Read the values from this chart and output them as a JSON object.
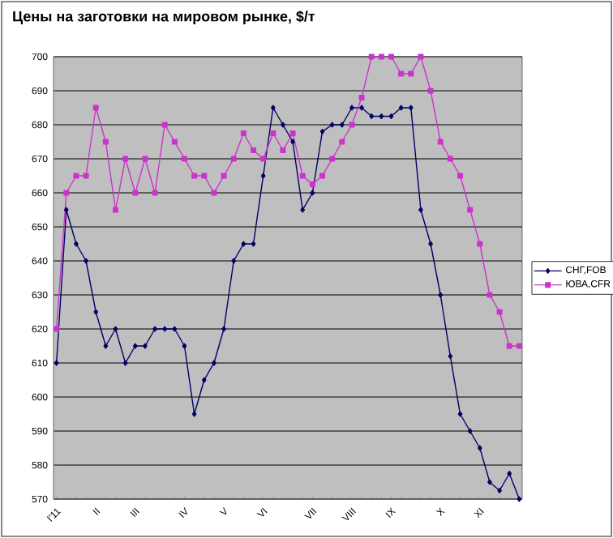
{
  "chart_data": {
    "type": "line",
    "title": "Цены на заготовки на мировом рынке, $/т",
    "categories": [
      "I'11",
      null,
      null,
      null,
      "II",
      null,
      null,
      null,
      "III",
      null,
      null,
      null,
      null,
      "IV",
      null,
      null,
      null,
      "V",
      null,
      null,
      null,
      "VI",
      null,
      null,
      null,
      null,
      "VII",
      null,
      null,
      null,
      "VIII",
      null,
      null,
      null,
      "IX",
      null,
      null,
      null,
      null,
      "X",
      null,
      null,
      null,
      "XI",
      null,
      null,
      null,
      null
    ],
    "series": [
      {
        "name": "СНГ,FOB",
        "color": "#000066",
        "marker": "diamond",
        "values": [
          610,
          655,
          645,
          640,
          625,
          615,
          620,
          610,
          615,
          615,
          620,
          620,
          620,
          615,
          595,
          605,
          610,
          620,
          640,
          645,
          645,
          665,
          685,
          680,
          675,
          655,
          660,
          678,
          680,
          680,
          685,
          685,
          682.5,
          682.5,
          682.5,
          685,
          685,
          655,
          645,
          630,
          612,
          595,
          590,
          585,
          575,
          572.5,
          577.5,
          570
        ]
      },
      {
        "name": "ЮВА,CFR",
        "color": "#cc33cc",
        "marker": "square",
        "values": [
          620,
          660,
          665,
          665,
          685,
          675,
          655,
          670,
          660,
          670,
          660,
          680,
          675,
          670,
          665,
          665,
          660,
          665,
          670,
          677.5,
          672.5,
          670,
          677.5,
          672.5,
          677.5,
          665,
          662.5,
          665,
          670,
          675,
          680,
          688,
          700,
          700,
          700,
          695,
          695,
          700,
          690,
          675,
          670,
          665,
          655,
          645,
          630,
          625,
          615,
          615
        ]
      }
    ],
    "ylim": [
      570,
      700
    ],
    "yticks": [
      570,
      580,
      590,
      600,
      610,
      620,
      630,
      640,
      650,
      660,
      670,
      680,
      690,
      700
    ],
    "grid": "y",
    "legend": "right",
    "line_style": "solid"
  }
}
